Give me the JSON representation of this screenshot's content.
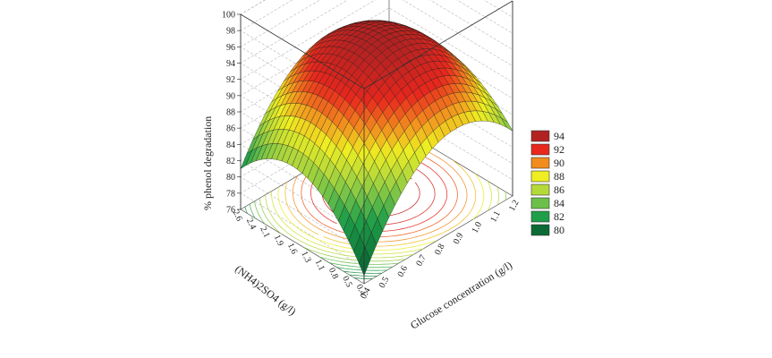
{
  "chart_data": {
    "type": "surface3d",
    "title": "",
    "zlabel": "% phenol degradation",
    "ylabel": "(NH4)2SO4 (g/l)",
    "xlabel": "Glucose concentration (g/l)",
    "zlim": [
      76,
      100
    ],
    "z_ticks": [
      "100",
      "98",
      "96",
      "94",
      "92",
      "90",
      "88",
      "86",
      "84",
      "82",
      "80",
      "78",
      "76"
    ],
    "x_ticks": [
      "0.4",
      "0.5",
      "0.6",
      "0.7",
      "0.8",
      "0.9",
      "1.0",
      "1.1",
      "1.2"
    ],
    "y_ticks": [
      "0.4",
      "0.5",
      "0.8",
      "1.1",
      "1.3",
      "1.6",
      "1.9",
      "2.1",
      "2.4",
      "2.6"
    ],
    "x_range": [
      0.4,
      1.2
    ],
    "y_range": [
      0.4,
      2.6
    ],
    "surface_samples": {
      "x": [
        0.4,
        0.8,
        1.2
      ],
      "y": [
        0.4,
        1.5,
        2.6
      ],
      "z": [
        [
          77,
          88,
          84
        ],
        [
          85,
          95,
          89
        ],
        [
          81,
          91,
          86
        ]
      ]
    },
    "legend": {
      "placement": "right",
      "entries": [
        {
          "label": "94",
          "color": "#b22222"
        },
        {
          "label": "92",
          "color": "#e8271d"
        },
        {
          "label": "90",
          "color": "#f28c1e"
        },
        {
          "label": "88",
          "color": "#eeee22"
        },
        {
          "label": "86",
          "color": "#b6d93a"
        },
        {
          "label": "84",
          "color": "#6cc04a"
        },
        {
          "label": "82",
          "color": "#1f9e49"
        },
        {
          "label": "80",
          "color": "#0a6b34"
        }
      ]
    },
    "contour_projection": true,
    "grid": true
  }
}
